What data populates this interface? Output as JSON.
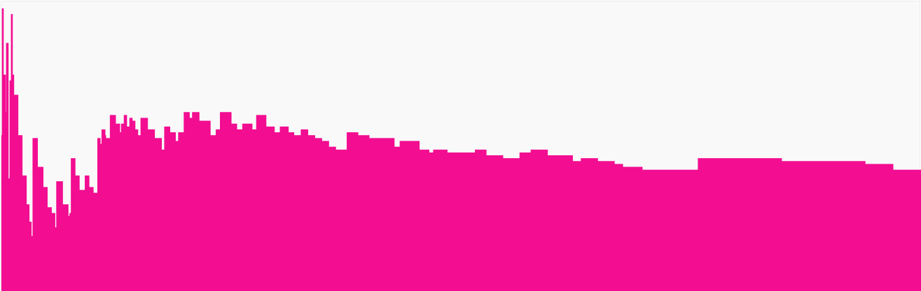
{
  "chart_data": {
    "type": "area",
    "fill_color": "#f20d91",
    "background_color": "#f9f9f9",
    "grid": false,
    "legend": "none",
    "xlim": [
      0,
      660
    ],
    "ylim": [
      0,
      1
    ],
    "keypoints": [
      [
        0,
        0.54
      ],
      [
        0.5,
        0.98
      ],
      [
        1.5,
        0.75
      ],
      [
        3,
        0.62
      ],
      [
        3.5,
        0.86
      ],
      [
        5,
        0.39
      ],
      [
        6,
        0.73
      ],
      [
        7,
        0.96
      ],
      [
        8,
        0.75
      ],
      [
        9,
        0.68
      ],
      [
        12,
        0.54
      ],
      [
        15,
        0.4
      ],
      [
        18,
        0.3
      ],
      [
        20,
        0.24
      ],
      [
        21.5,
        0.19
      ],
      [
        22.5,
        0.53
      ],
      [
        26,
        0.43
      ],
      [
        30,
        0.36
      ],
      [
        33,
        0.29
      ],
      [
        36,
        0.27
      ],
      [
        38.5,
        0.22
      ],
      [
        39.5,
        0.38
      ],
      [
        44,
        0.3
      ],
      [
        48,
        0.26
      ],
      [
        49,
        0.27
      ],
      [
        50,
        0.46
      ],
      [
        53,
        0.4
      ],
      [
        56,
        0.35
      ],
      [
        59,
        0.35
      ],
      [
        60,
        0.4
      ],
      [
        63,
        0.36
      ],
      [
        66,
        0.34
      ],
      [
        68,
        0.34
      ],
      [
        69,
        0.53
      ],
      [
        71,
        0.51
      ],
      [
        72,
        0.56
      ],
      [
        74.5,
        0.54
      ],
      [
        75,
        0.53
      ],
      [
        78,
        0.61
      ],
      [
        82,
        0.58
      ],
      [
        85,
        0.55
      ],
      [
        86,
        0.58
      ],
      [
        88,
        0.61
      ],
      [
        90,
        0.57
      ],
      [
        92,
        0.6
      ],
      [
        94,
        0.59
      ],
      [
        96,
        0.56
      ],
      [
        98,
        0.54
      ],
      [
        100,
        0.6
      ],
      [
        105,
        0.56
      ],
      [
        110,
        0.53
      ],
      [
        115,
        0.49
      ],
      [
        117,
        0.57
      ],
      [
        121,
        0.55
      ],
      [
        125,
        0.52
      ],
      [
        127,
        0.55
      ],
      [
        131,
        0.62
      ],
      [
        135,
        0.6
      ],
      [
        137,
        0.62
      ],
      [
        142,
        0.59
      ],
      [
        150,
        0.54
      ],
      [
        154,
        0.56
      ],
      [
        157,
        0.62
      ],
      [
        165,
        0.58
      ],
      [
        169,
        0.56
      ],
      [
        173,
        0.58
      ],
      [
        176,
        0.58
      ],
      [
        180,
        0.56
      ],
      [
        183,
        0.61
      ],
      [
        190,
        0.57
      ],
      [
        196,
        0.55
      ],
      [
        200,
        0.57
      ],
      [
        206,
        0.55
      ],
      [
        210,
        0.54
      ],
      [
        215,
        0.56
      ],
      [
        220,
        0.54
      ],
      [
        225,
        0.53
      ],
      [
        230,
        0.52
      ],
      [
        235,
        0.5
      ],
      [
        240,
        0.49
      ],
      [
        244,
        0.49
      ],
      [
        248,
        0.55
      ],
      [
        256,
        0.54
      ],
      [
        264,
        0.53
      ],
      [
        270,
        0.53
      ],
      [
        282,
        0.5
      ],
      [
        286,
        0.52
      ],
      [
        300,
        0.49
      ],
      [
        307,
        0.48
      ],
      [
        310,
        0.49
      ],
      [
        320,
        0.48
      ],
      [
        330,
        0.48
      ],
      [
        340,
        0.49
      ],
      [
        348,
        0.47
      ],
      [
        360,
        0.46
      ],
      [
        372,
        0.48
      ],
      [
        380,
        0.49
      ],
      [
        392,
        0.47
      ],
      [
        400,
        0.47
      ],
      [
        410,
        0.45
      ],
      [
        416,
        0.46
      ],
      [
        428,
        0.45
      ],
      [
        440,
        0.44
      ],
      [
        446,
        0.43
      ],
      [
        460,
        0.42
      ],
      [
        475,
        0.42
      ],
      [
        487,
        0.42
      ],
      [
        495,
        0.42
      ],
      [
        500,
        0.46
      ],
      [
        515,
        0.46
      ],
      [
        540,
        0.46
      ],
      [
        560,
        0.45
      ],
      [
        580,
        0.45
      ],
      [
        600,
        0.45
      ],
      [
        620,
        0.44
      ],
      [
        640,
        0.42
      ],
      [
        660,
        0.42
      ]
    ]
  }
}
